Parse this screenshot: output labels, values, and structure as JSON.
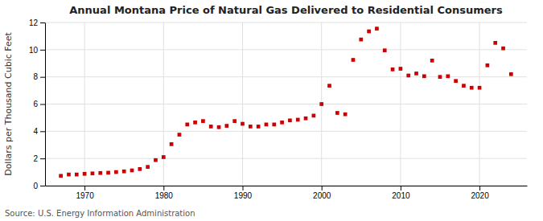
{
  "chart_data": {
    "type": "scatter",
    "title": "Annual Montana Price of Natural Gas Delivered to Residential Consumers",
    "ylabel": "Dollars per Thousand Cubic Feet",
    "source": "Source: U.S. Energy Information Administration",
    "color": "#cc0000",
    "marker": "square",
    "grid": true,
    "xlim": [
      1965,
      2026
    ],
    "xticks": [
      1970,
      1980,
      1990,
      2000,
      2010,
      2020
    ],
    "ylim": [
      0,
      12
    ],
    "yticks": [
      0,
      2,
      4,
      6,
      8,
      10,
      12
    ],
    "x": [
      1967,
      1968,
      1969,
      1970,
      1971,
      1972,
      1973,
      1974,
      1975,
      1976,
      1977,
      1978,
      1979,
      1980,
      1981,
      1982,
      1983,
      1984,
      1985,
      1986,
      1987,
      1988,
      1989,
      1990,
      1991,
      1992,
      1993,
      1994,
      1995,
      1996,
      1997,
      1998,
      1999,
      2000,
      2001,
      2002,
      2003,
      2004,
      2005,
      2006,
      2007,
      2008,
      2009,
      2010,
      2011,
      2012,
      2013,
      2014,
      2015,
      2016,
      2017,
      2018,
      2019,
      2020,
      2021,
      2022,
      2023,
      2024
    ],
    "values": [
      0.72,
      0.82,
      0.82,
      0.87,
      0.9,
      0.93,
      0.95,
      1.0,
      1.05,
      1.12,
      1.22,
      1.38,
      1.88,
      2.1,
      3.05,
      3.75,
      4.5,
      4.65,
      4.75,
      4.35,
      4.3,
      4.4,
      4.75,
      4.55,
      4.35,
      4.35,
      4.5,
      4.5,
      4.65,
      4.8,
      4.85,
      4.95,
      5.15,
      6.0,
      7.35,
      5.35,
      5.25,
      9.25,
      10.75,
      11.35,
      11.55,
      9.95,
      8.55,
      8.6,
      8.1,
      8.25,
      8.05,
      9.2,
      8.0,
      8.05,
      7.7,
      7.35,
      7.2,
      7.2,
      8.85,
      10.5,
      10.1,
      8.2
    ]
  }
}
